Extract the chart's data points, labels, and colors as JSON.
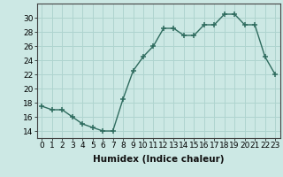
{
  "xlabel": "Humidex (Indice chaleur)",
  "x": [
    0,
    1,
    2,
    3,
    4,
    5,
    6,
    7,
    8,
    9,
    10,
    11,
    12,
    13,
    14,
    15,
    16,
    17,
    18,
    19,
    20,
    21,
    22,
    23
  ],
  "y": [
    17.5,
    17.0,
    17.0,
    16.0,
    15.0,
    14.5,
    14.0,
    14.0,
    18.5,
    22.5,
    24.5,
    26.0,
    28.5,
    28.5,
    27.5,
    27.5,
    29.0,
    29.0,
    30.5,
    30.5,
    29.0,
    29.0,
    24.5,
    22.0
  ],
  "line_color": "#2e6b5e",
  "bg_color": "#cce8e4",
  "grid_color": "#afd4cf",
  "ylim_min": 13,
  "ylim_max": 32,
  "yticks": [
    14,
    16,
    18,
    20,
    22,
    24,
    26,
    28,
    30
  ],
  "tick_fontsize": 6.5,
  "xlabel_fontsize": 7.5,
  "marker": "+"
}
